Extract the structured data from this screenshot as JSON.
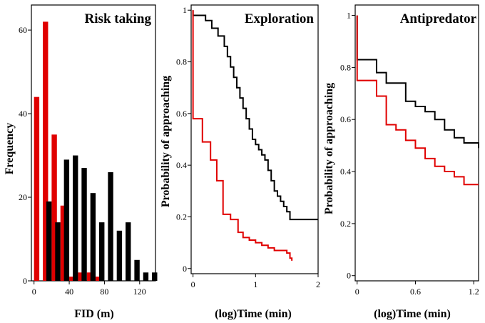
{
  "colors": {
    "black": "#000000",
    "red": "#e00000"
  },
  "chart_data": [
    {
      "type": "bar",
      "title": "Risk taking",
      "xlabel": "FID (m)",
      "ylabel": "Frequency",
      "xlim": [
        -3,
        138
      ],
      "ylim": [
        0,
        66
      ],
      "xticks": [
        0,
        40,
        80,
        120
      ],
      "xtick_labels": [
        "0",
        "40",
        "80",
        "120"
      ],
      "yticks": [
        0,
        20,
        40,
        60
      ],
      "ytick_labels": [
        "0",
        "20",
        "40",
        "60"
      ],
      "bar_width": 6,
      "series": [
        {
          "name": "red",
          "color": "#e00000",
          "bins": [
            0,
            10,
            20,
            30,
            40,
            50,
            60,
            70
          ],
          "values": [
            44,
            62,
            35,
            18,
            1,
            2,
            2,
            1
          ]
        },
        {
          "name": "black",
          "color": "#000000",
          "bins": [
            14,
            24,
            34,
            44,
            54,
            64,
            74,
            84,
            94,
            104,
            114,
            124,
            134
          ],
          "values": [
            19,
            14,
            29,
            30,
            27,
            21,
            14,
            26,
            12,
            14,
            5,
            2,
            2
          ]
        }
      ]
    },
    {
      "type": "line",
      "step": true,
      "title": "Exploration",
      "xlabel": "(log)Time (min)",
      "ylabel": "Probability of approaching",
      "xlim": [
        -0.03,
        2.0
      ],
      "ylim": [
        -0.02,
        1.02
      ],
      "xticks": [
        0,
        1,
        2
      ],
      "xtick_labels": [
        "0",
        "1",
        "2"
      ],
      "yticks": [
        0,
        0.2,
        0.4,
        0.6,
        0.8,
        1
      ],
      "ytick_labels": [
        "0",
        "0.2",
        "0.4",
        "0.6",
        "0.8",
        "1"
      ],
      "series": [
        {
          "name": "black",
          "color": "#000000",
          "x": [
            0,
            0.1,
            0.2,
            0.3,
            0.4,
            0.5,
            0.55,
            0.6,
            0.65,
            0.7,
            0.75,
            0.8,
            0.85,
            0.9,
            0.95,
            1.0,
            1.05,
            1.1,
            1.15,
            1.2,
            1.25,
            1.3,
            1.35,
            1.4,
            1.45,
            1.5,
            1.55,
            1.6,
            1.65,
            1.7,
            2.0
          ],
          "y": [
            0.98,
            0.98,
            0.96,
            0.93,
            0.9,
            0.86,
            0.82,
            0.78,
            0.74,
            0.7,
            0.66,
            0.62,
            0.58,
            0.54,
            0.5,
            0.48,
            0.46,
            0.44,
            0.42,
            0.38,
            0.34,
            0.3,
            0.28,
            0.26,
            0.24,
            0.22,
            0.19,
            0.19,
            0.19,
            0.19,
            0.19
          ]
        },
        {
          "name": "red",
          "color": "#e00000",
          "x": [
            0,
            0.15,
            0.28,
            0.38,
            0.48,
            0.6,
            0.72,
            0.8,
            0.9,
            1.0,
            1.1,
            1.2,
            1.3,
            1.4,
            1.5,
            1.55,
            1.58
          ],
          "y": [
            0.58,
            0.49,
            0.42,
            0.34,
            0.21,
            0.19,
            0.14,
            0.12,
            0.11,
            0.1,
            0.09,
            0.08,
            0.07,
            0.07,
            0.06,
            0.04,
            0.03
          ]
        }
      ]
    },
    {
      "type": "line",
      "step": true,
      "title": "Antipredator",
      "xlabel": "(log)Time (min)",
      "ylabel": "Probability of approaching",
      "xlim": [
        -0.02,
        1.25
      ],
      "ylim": [
        -0.02,
        1.04
      ],
      "xticks": [
        0,
        0.6,
        1.2
      ],
      "xtick_labels": [
        "0",
        "0.6",
        "1.2"
      ],
      "yticks": [
        0,
        0.2,
        0.4,
        0.6,
        0.8,
        1
      ],
      "ytick_labels": [
        "0",
        "0.2",
        "0.4",
        "0.6",
        "0.8",
        "1"
      ],
      "series": [
        {
          "name": "black",
          "color": "#000000",
          "x": [
            0,
            0.1,
            0.2,
            0.3,
            0.4,
            0.5,
            0.6,
            0.7,
            0.8,
            0.9,
            1.0,
            1.1,
            1.25
          ],
          "y": [
            0.83,
            0.83,
            0.78,
            0.74,
            0.74,
            0.67,
            0.65,
            0.63,
            0.6,
            0.56,
            0.53,
            0.51,
            0.49
          ]
        },
        {
          "name": "red",
          "color": "#e00000",
          "x": [
            0,
            0.1,
            0.2,
            0.3,
            0.4,
            0.5,
            0.6,
            0.7,
            0.8,
            0.9,
            1.0,
            1.1,
            1.25
          ],
          "y": [
            0.75,
            0.75,
            0.69,
            0.58,
            0.56,
            0.52,
            0.49,
            0.45,
            0.42,
            0.4,
            0.38,
            0.35,
            0.35
          ]
        }
      ]
    }
  ]
}
